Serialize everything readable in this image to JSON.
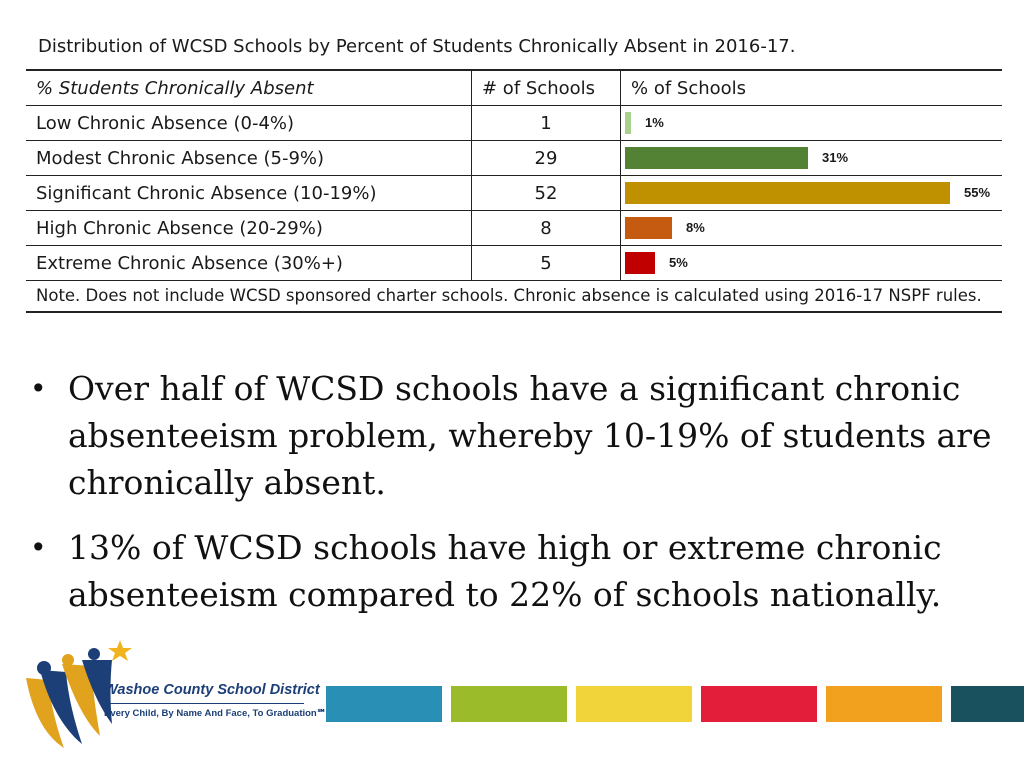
{
  "table": {
    "title": "Distribution of WCSD Schools by Percent of Students Chronically Absent in 2016-17.",
    "headers": {
      "category": "% Students Chronically Absent",
      "count": "# of Schools",
      "percent": "% of Schools"
    },
    "rows": [
      {
        "category": "Low Chronic Absence (0-4%)",
        "count": "1",
        "percent": 1,
        "percent_label": "1%",
        "color": "#a9d18e"
      },
      {
        "category": "Modest Chronic Absence (5-9%)",
        "count": "29",
        "percent": 31,
        "percent_label": "31%",
        "color": "#548235"
      },
      {
        "category": "Significant Chronic Absence (10-19%)",
        "count": "52",
        "percent": 55,
        "percent_label": "55%",
        "color": "#bf9000"
      },
      {
        "category": "High Chronic Absence (20-29%)",
        "count": "8",
        "percent": 8,
        "percent_label": "8%",
        "color": "#c55a11"
      },
      {
        "category": "Extreme Chronic Absence (30%+)",
        "count": "5",
        "percent": 5,
        "percent_label": "5%",
        "color": "#c00000"
      }
    ],
    "note": "Note. Does not include WCSD sponsored charter schools. Chronic absence is calculated using 2016-17 NSPF rules."
  },
  "bullets": [
    "Over half of WCSD schools have a significant chronic absenteeism problem, whereby 10-19% of students are chronically absent.",
    "13% of WCSD schools have high or extreme chronic absenteeism compared to 22% of schools nationally."
  ],
  "bullet_glyph": "•",
  "footer": {
    "org_name": "Washoe County School District",
    "tagline": "Every Child, By Name And Face, To Graduation℠",
    "logo_icon": "wcsd-logo-icon",
    "strip_colors": [
      "#2a8fb5",
      "#9bbb2a",
      "#f0d43a",
      "#e31e3a",
      "#f2a11e",
      "#19525e"
    ]
  }
}
